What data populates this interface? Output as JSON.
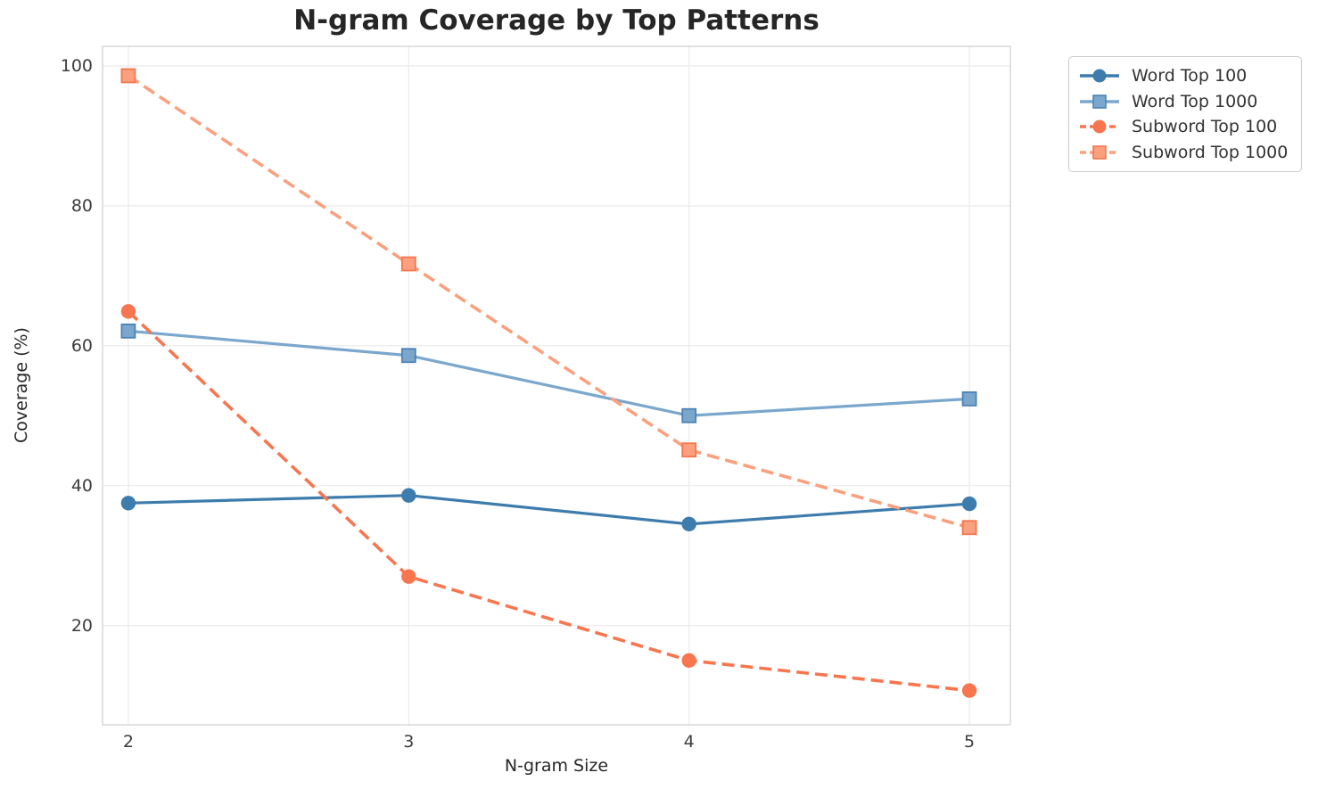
{
  "chart_data": {
    "type": "line",
    "title": "N-gram Coverage by Top Patterns",
    "xlabel": "N-gram Size",
    "ylabel": "Coverage (%)",
    "x": [
      2,
      3,
      4,
      5
    ],
    "xticks": [
      2,
      3,
      4,
      5
    ],
    "yticks": [
      100,
      80,
      60,
      40,
      20
    ],
    "xlim": [
      1.908,
      5.146
    ],
    "ylim": [
      5.8,
      102.8
    ],
    "grid": true,
    "legend_position": "outside-upper-right",
    "series": [
      {
        "name": "Word Top 100",
        "values": [
          37.5,
          38.6,
          34.5,
          37.4
        ],
        "color": "#3d7cac",
        "marker": "circle",
        "line_style": "solid"
      },
      {
        "name": "Word Top 1000",
        "values": [
          62.1,
          58.6,
          50.0,
          52.4
        ],
        "color": "#7ba7cd",
        "marker": "square",
        "marker_edge": "#4d82b4",
        "line_style": "solid"
      },
      {
        "name": "Subword Top 100",
        "values": [
          64.9,
          27.0,
          15.0,
          10.7
        ],
        "color": "#f7764f",
        "marker": "circle",
        "line_style": "dashed"
      },
      {
        "name": "Subword Top 1000",
        "values": [
          98.6,
          71.7,
          45.1,
          34.0
        ],
        "color": "#faa07e",
        "marker": "square",
        "marker_edge": "#f3764f",
        "line_style": "dashed"
      }
    ]
  },
  "style": {
    "background": "#ffffff",
    "grid_color": "#ebebeb",
    "spine_color": "#d8d8d8",
    "title_color": "#262626",
    "tick_color": "#3d3d3d",
    "label_color": "#262626",
    "legend_border": "#cccccc",
    "legend_text": "#333333"
  }
}
